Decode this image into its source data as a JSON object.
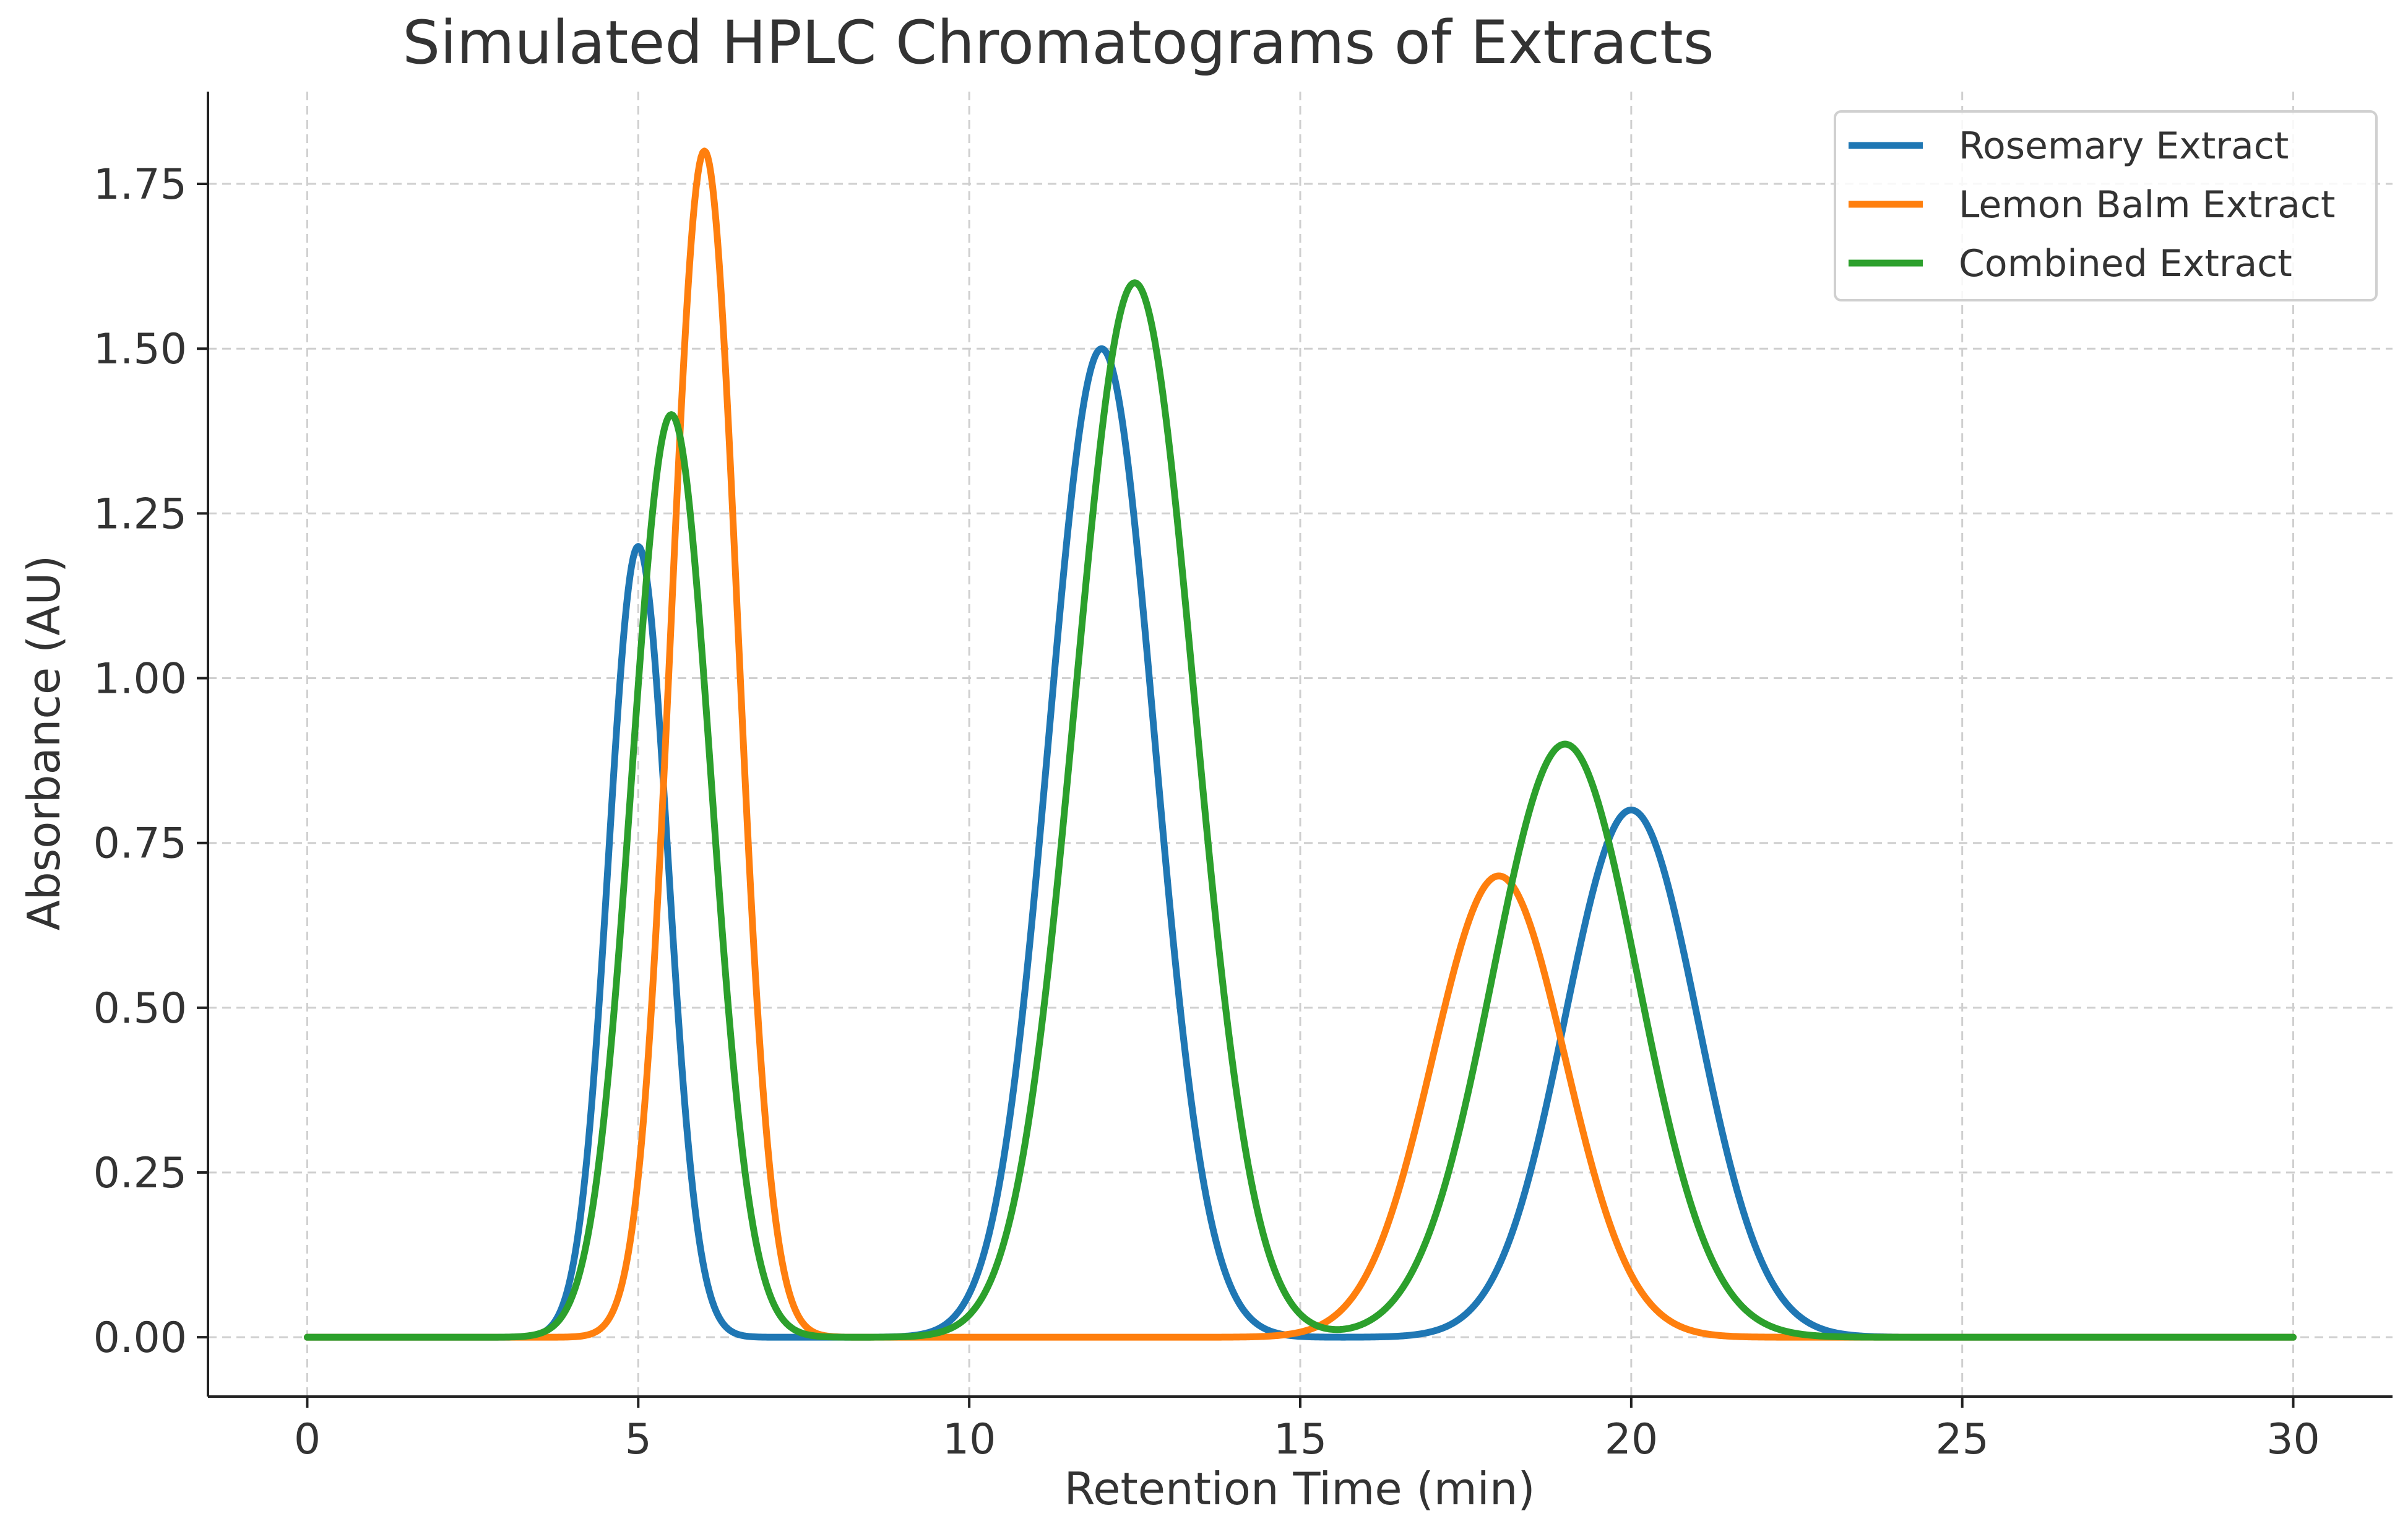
{
  "chart_data": {
    "type": "line",
    "title": "Simulated HPLC Chromatograms of Extracts",
    "xlabel": "Retention Time (min)",
    "ylabel": "Absorbance (AU)",
    "xlim": [
      -1.5,
      31.5
    ],
    "ylim": [
      -0.09,
      1.89
    ],
    "xticks": [
      0,
      5,
      10,
      15,
      20,
      25,
      30
    ],
    "xtick_labels": [
      "0",
      "5",
      "10",
      "15",
      "20",
      "25",
      "30"
    ],
    "yticks": [
      0.0,
      0.25,
      0.5,
      0.75,
      1.0,
      1.25,
      1.5,
      1.75
    ],
    "ytick_labels": [
      "0.00",
      "0.25",
      "0.50",
      "0.75",
      "1.00",
      "1.25",
      "1.50",
      "1.75"
    ],
    "grid": true,
    "legend_position": "top-right",
    "x_range": [
      0,
      30
    ],
    "series": [
      {
        "name": "Rosemary Extract",
        "color": "#1f77b4",
        "peaks": [
          {
            "retention_time": 5.0,
            "height": 1.2,
            "sigma": 0.45
          },
          {
            "retention_time": 12.0,
            "height": 1.5,
            "sigma": 0.8
          },
          {
            "retention_time": 20.0,
            "height": 0.8,
            "sigma": 1.0
          }
        ]
      },
      {
        "name": "Lemon Balm Extract",
        "color": "#ff7f0e",
        "peaks": [
          {
            "retention_time": 6.0,
            "height": 1.8,
            "sigma": 0.5
          },
          {
            "retention_time": 18.0,
            "height": 0.7,
            "sigma": 1.0
          }
        ]
      },
      {
        "name": "Combined Extract",
        "color": "#2ca02c",
        "peaks": [
          {
            "retention_time": 5.5,
            "height": 1.4,
            "sigma": 0.6
          },
          {
            "retention_time": 12.5,
            "height": 1.6,
            "sigma": 0.9
          },
          {
            "retention_time": 19.0,
            "height": 0.9,
            "sigma": 1.1
          }
        ]
      }
    ]
  }
}
